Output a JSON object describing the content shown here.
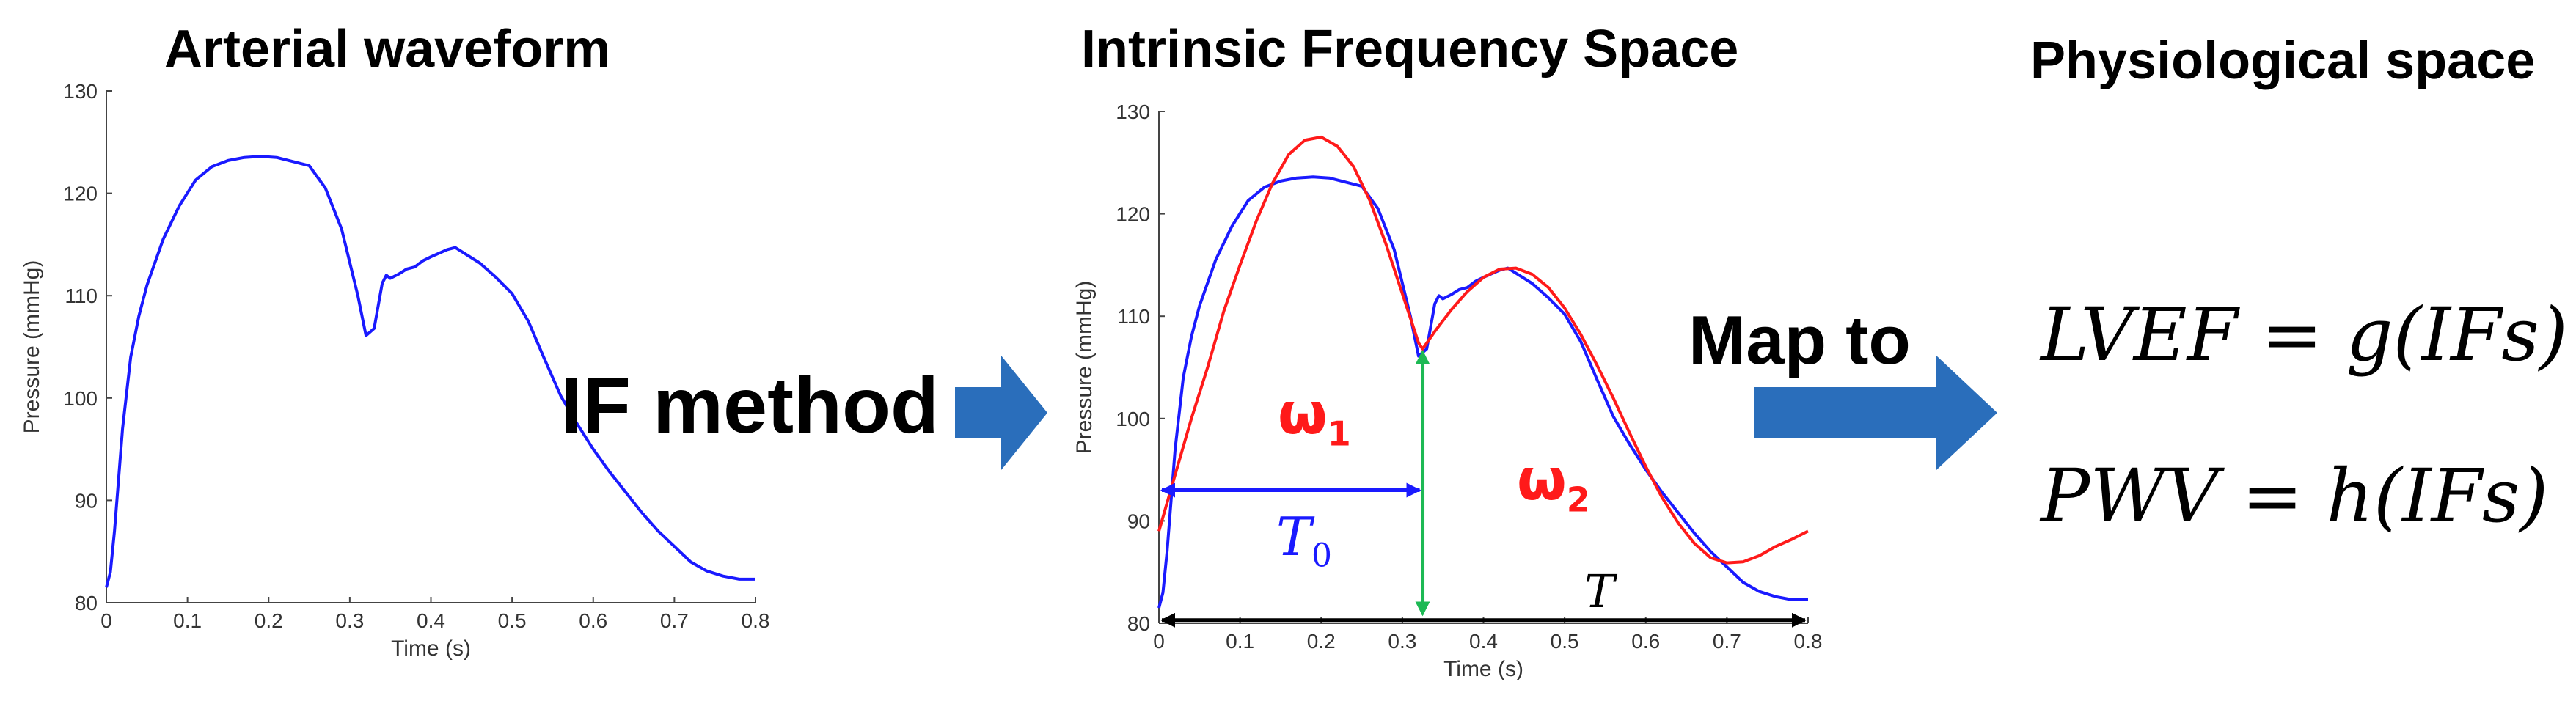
{
  "titles": {
    "left": "Arterial waveform",
    "middle": "Intrinsic Frequency Space",
    "right": "Physiological space"
  },
  "arrows": {
    "if_method": "IF method",
    "map_to": "Map to"
  },
  "formulas": {
    "lvef": "LVEF = g(IFs)",
    "pwv": "PWV = h(IFs)"
  },
  "annotations": {
    "omega1": "ω",
    "omega1_sub": "1",
    "omega2": "ω",
    "omega2_sub": "2",
    "t0": "T",
    "t0_sub": "0",
    "t": "T"
  },
  "colors": {
    "waveform": "#1a1aff",
    "fit": "#ff1a1a",
    "t0_arrow": "#1a1aff",
    "split_arrow": "#1db954",
    "t_arrow": "#000000",
    "block_arrow": "#2a6ebb"
  },
  "chart_data": [
    {
      "type": "line",
      "xlabel": "Time (s)",
      "ylabel": "Pressure (mmHg)",
      "xlim": [
        0,
        0.8
      ],
      "ylim": [
        80,
        130
      ],
      "xticks": [
        "0",
        "0.1",
        "0.2",
        "0.3",
        "0.4",
        "0.5",
        "0.6",
        "0.7",
        "0.8"
      ],
      "yticks": [
        "80",
        "90",
        "100",
        "110",
        "120",
        "130"
      ],
      "series": [
        {
          "color": "#1a1aff",
          "x": [
            0,
            0.005,
            0.01,
            0.02,
            0.03,
            0.04,
            0.05,
            0.07,
            0.09,
            0.11,
            0.13,
            0.15,
            0.17,
            0.19,
            0.21,
            0.23,
            0.25,
            0.27,
            0.29,
            0.31,
            0.32,
            0.33,
            0.34,
            0.345,
            0.35,
            0.36,
            0.37,
            0.38,
            0.39,
            0.4,
            0.42,
            0.43,
            0.44,
            0.46,
            0.48,
            0.5,
            0.52,
            0.54,
            0.56,
            0.58,
            0.6,
            0.62,
            0.64,
            0.66,
            0.68,
            0.7,
            0.72,
            0.74,
            0.76,
            0.78,
            0.8
          ],
          "y": [
            81.5,
            83,
            87,
            97,
            104,
            108,
            111,
            115.5,
            118.8,
            121.3,
            122.6,
            123.2,
            123.5,
            123.6,
            123.5,
            123.1,
            122.7,
            120.5,
            116.5,
            110,
            106.1,
            106.8,
            111.2,
            112,
            111.7,
            112.1,
            112.6,
            112.8,
            113.4,
            113.8,
            114.5,
            114.7,
            114.2,
            113.2,
            111.8,
            110.2,
            107.5,
            103.8,
            100.2,
            97.5,
            95,
            92.8,
            90.8,
            88.8,
            87,
            85.5,
            84,
            83.1,
            82.6,
            82.3,
            82.3
          ]
        }
      ]
    },
    {
      "type": "line",
      "xlabel": "Time (s)",
      "ylabel": "Pressure (mmHg)",
      "xlim": [
        0,
        0.8
      ],
      "ylim": [
        80,
        130
      ],
      "xticks": [
        "0",
        "0.1",
        "0.2",
        "0.3",
        "0.4",
        "0.5",
        "0.6",
        "0.7",
        "0.8"
      ],
      "yticks": [
        "80",
        "90",
        "100",
        "110",
        "120",
        "130"
      ],
      "series": [
        {
          "color": "#1a1aff",
          "x": [
            0,
            0.005,
            0.01,
            0.02,
            0.03,
            0.04,
            0.05,
            0.07,
            0.09,
            0.11,
            0.13,
            0.15,
            0.17,
            0.19,
            0.21,
            0.23,
            0.25,
            0.27,
            0.29,
            0.31,
            0.32,
            0.33,
            0.34,
            0.345,
            0.35,
            0.36,
            0.37,
            0.38,
            0.39,
            0.4,
            0.42,
            0.43,
            0.44,
            0.46,
            0.48,
            0.5,
            0.52,
            0.54,
            0.56,
            0.58,
            0.6,
            0.62,
            0.64,
            0.66,
            0.68,
            0.7,
            0.72,
            0.74,
            0.76,
            0.78,
            0.8
          ],
          "y": [
            81.5,
            83,
            87,
            97,
            104,
            108,
            111,
            115.5,
            118.8,
            121.3,
            122.6,
            123.2,
            123.5,
            123.6,
            123.5,
            123.1,
            122.7,
            120.5,
            116.5,
            110,
            106.1,
            106.8,
            111.2,
            112,
            111.7,
            112.1,
            112.6,
            112.8,
            113.4,
            113.8,
            114.5,
            114.7,
            114.2,
            113.2,
            111.8,
            110.2,
            107.5,
            103.8,
            100.2,
            97.5,
            95,
            92.8,
            90.8,
            88.8,
            87,
            85.5,
            84,
            83.1,
            82.6,
            82.3,
            82.3
          ]
        },
        {
          "color": "#ff1a1a",
          "x": [
            0,
            0.02,
            0.04,
            0.06,
            0.08,
            0.1,
            0.12,
            0.14,
            0.16,
            0.18,
            0.2,
            0.22,
            0.24,
            0.26,
            0.28,
            0.3,
            0.32,
            0.325,
            0.34,
            0.36,
            0.38,
            0.4,
            0.42,
            0.44,
            0.46,
            0.48,
            0.5,
            0.52,
            0.54,
            0.56,
            0.58,
            0.6,
            0.62,
            0.64,
            0.66,
            0.68,
            0.7,
            0.72,
            0.74,
            0.76,
            0.78,
            0.8
          ],
          "y": [
            89,
            94.5,
            100,
            105,
            110.5,
            115,
            119.3,
            123,
            125.8,
            127.2,
            127.5,
            126.6,
            124.6,
            121.3,
            117,
            112.2,
            107.4,
            106.8,
            108.5,
            110.6,
            112.4,
            113.8,
            114.6,
            114.7,
            114.1,
            112.8,
            110.8,
            108.2,
            105.2,
            102,
            98.6,
            95.3,
            92.3,
            89.8,
            87.8,
            86.4,
            85.9,
            86,
            86.6,
            87.5,
            88.2,
            89
          ]
        }
      ]
    }
  ]
}
